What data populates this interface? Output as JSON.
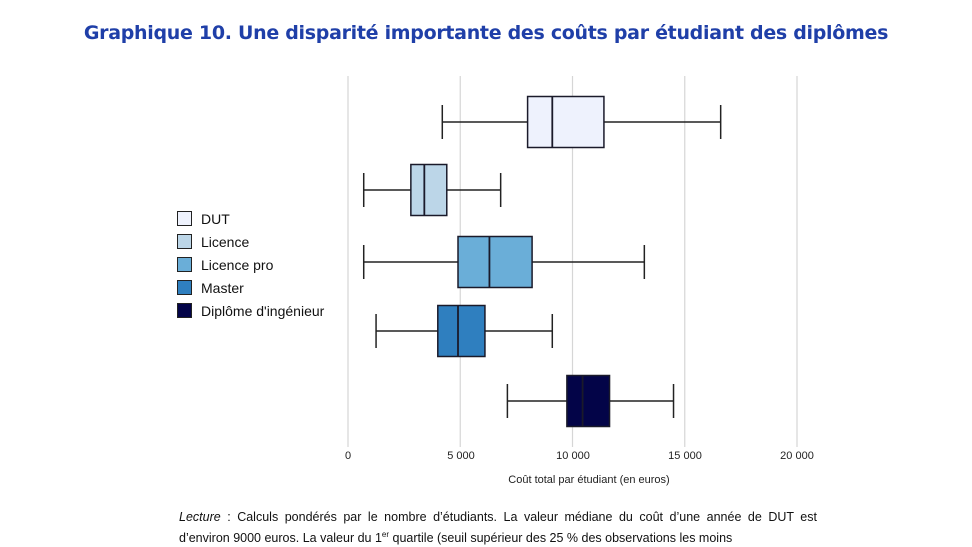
{
  "title": "Graphique 10. Une disparité importante des coûts par étudiant des diplômes",
  "legend": [
    {
      "label": "DUT",
      "color": "#eef2fd"
    },
    {
      "label": "Licence",
      "color": "#bcd6e8"
    },
    {
      "label": "Licence pro",
      "color": "#6aaed8"
    },
    {
      "label": "Master",
      "color": "#2f7fbf"
    },
    {
      "label": "Diplôme d'ingénieur",
      "color": "#030448"
    }
  ],
  "axis": {
    "xlabel": "Coût total par étudiant (en euros)",
    "ticks": [
      "0",
      "5 000",
      "10 000",
      "15 000",
      "20 000"
    ]
  },
  "note": {
    "lead": "Lecture",
    "line1": " : Calculs pondérés par le nombre d’étudiants. La valeur médiane du coût d’une année de DUT est d’environ 9000 euros. La valeur du 1",
    "sup": "er",
    "line2": " quartile (seuil supérieur des 25 % des observations les moins"
  },
  "chart_data": {
    "type": "boxplot",
    "title": "Graphique 10. Une disparité importante des coûts par étudiant des diplômes",
    "xlabel": "Coût total par étudiant (en euros)",
    "ylabel": "",
    "xlim": [
      0,
      20000
    ],
    "xticks": [
      0,
      5000,
      10000,
      15000,
      20000
    ],
    "grid": "vertical",
    "legend_position": "left",
    "series": [
      {
        "name": "DUT",
        "color": "#eef2fd",
        "min": 4200,
        "q1": 8000,
        "median": 9100,
        "q3": 11400,
        "max": 16600
      },
      {
        "name": "Licence",
        "color": "#bcd6e8",
        "min": 700,
        "q1": 2800,
        "median": 3400,
        "q3": 4400,
        "max": 6800
      },
      {
        "name": "Licence pro",
        "color": "#6aaed8",
        "min": 700,
        "q1": 4900,
        "median": 6300,
        "q3": 8200,
        "max": 13200
      },
      {
        "name": "Master",
        "color": "#2f7fbf",
        "min": 1250,
        "q1": 4000,
        "median": 4900,
        "q3": 6100,
        "max": 9100
      },
      {
        "name": "Diplôme d'ingénieur",
        "color": "#030448",
        "min": 7100,
        "q1": 9750,
        "median": 10450,
        "q3": 11650,
        "max": 14500
      }
    ]
  }
}
